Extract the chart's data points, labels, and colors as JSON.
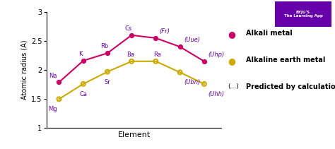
{
  "alkali_x": [
    1,
    2,
    3,
    4,
    5,
    6,
    7
  ],
  "alkali_y": [
    1.79,
    2.16,
    2.29,
    2.6,
    2.55,
    2.4,
    2.15
  ],
  "alkali_labels": [
    "Na",
    "K",
    "Rb",
    "Cs",
    "(Fr)",
    "(Uue)",
    "(Uhp)"
  ],
  "alkali_label_dx": [
    -0.08,
    -0.1,
    -0.13,
    -0.13,
    0.15,
    0.17,
    0.17
  ],
  "alkali_label_dy": [
    0.06,
    0.06,
    0.06,
    0.06,
    0.06,
    0.06,
    0.06
  ],
  "alkali_label_ha": [
    "right",
    "center",
    "center",
    "center",
    "left",
    "left",
    "left"
  ],
  "alkali_predicted": [
    false,
    false,
    false,
    false,
    true,
    true,
    true
  ],
  "earth_x": [
    1,
    2,
    3,
    4,
    5,
    6,
    7
  ],
  "earth_y": [
    1.5,
    1.76,
    1.97,
    2.15,
    2.15,
    1.96,
    1.76
  ],
  "earth_labels": [
    "Mg",
    "Ca",
    "Sr",
    "Ba",
    "Ra",
    "(Ubn)",
    "(Uhh)"
  ],
  "earth_label_dx": [
    -0.08,
    0.0,
    0.0,
    -0.05,
    0.05,
    0.17,
    0.17
  ],
  "earth_label_dy": [
    -0.12,
    -0.12,
    -0.12,
    0.06,
    0.06,
    -0.12,
    -0.12
  ],
  "earth_label_ha": [
    "right",
    "center",
    "center",
    "center",
    "center",
    "left",
    "left"
  ],
  "earth_predicted": [
    false,
    false,
    false,
    false,
    false,
    true,
    true
  ],
  "alkali_color": "#cc0066",
  "earth_color": "#ccaa00",
  "label_color": "#6600aa",
  "bg_color": "#ffffff",
  "ylabel": "Atomic radius (A)",
  "xlabel": "Element",
  "ylim": [
    1.0,
    3.0
  ],
  "yticks": [
    1.0,
    1.5,
    2.0,
    2.5,
    3.0
  ],
  "ytick_labels": [
    "1",
    "1.5",
    "2",
    "2.5",
    "3"
  ],
  "legend_alkali": "Alkali metal",
  "legend_earth": "Alkaline earth metal",
  "legend_predicted": "Predicted by calculation",
  "legend_predicted_marker": "(...)"
}
